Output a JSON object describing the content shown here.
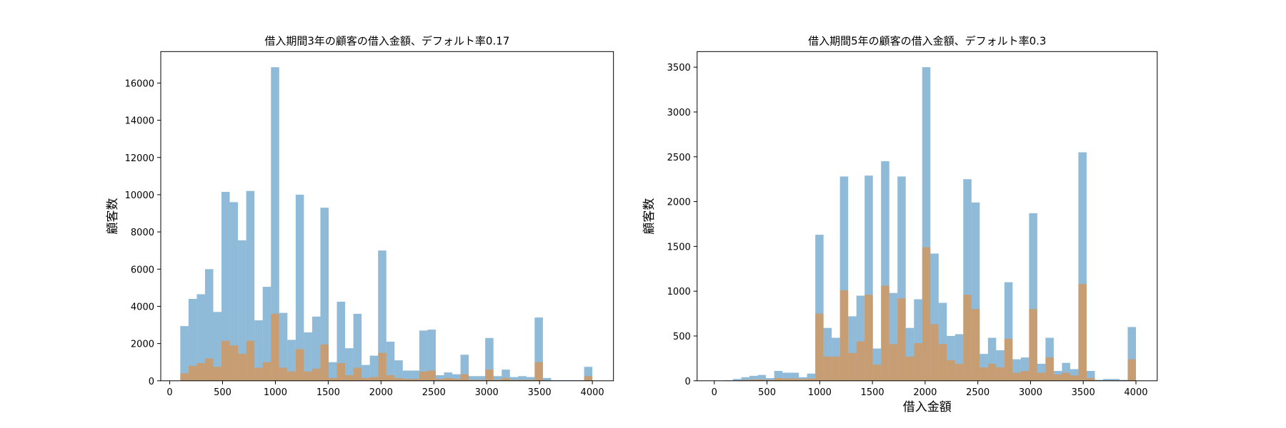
{
  "chart_data": [
    {
      "type": "histogram",
      "title": "借入期間3年の顧客の借入金額、デフォルト率0.17",
      "y_label": "顧客数",
      "bins": [
        100,
        178,
        256,
        334,
        412,
        490,
        568,
        646,
        724,
        802,
        880,
        958,
        1036,
        1114,
        1192,
        1270,
        1348,
        1426,
        1504,
        1582,
        1660,
        1738,
        1816,
        1894,
        1972,
        2050,
        2128,
        2206,
        2284,
        2362,
        2440,
        2518,
        2596,
        2674,
        2752,
        2830,
        2908,
        2986,
        3064,
        3142,
        3220,
        3298,
        3376,
        3454,
        3532,
        3610,
        3688,
        3766,
        3844,
        3922,
        4000
      ],
      "series": [
        {
          "color": "#1f77b4",
          "values": [
            2940,
            4400,
            4650,
            6000,
            3700,
            10150,
            9600,
            7550,
            10200,
            3250,
            5050,
            16850,
            3650,
            2200,
            10000,
            2600,
            3450,
            9300,
            1000,
            4250,
            1750,
            3600,
            850,
            1350,
            7000,
            2100,
            1100,
            550,
            550,
            2700,
            2750,
            300,
            450,
            350,
            1400,
            250,
            250,
            2300,
            250,
            600,
            200,
            250,
            200,
            3400,
            150,
            30,
            30,
            30,
            30,
            750
          ]
        },
        {
          "color": "#ff7f0e",
          "values": [
            400,
            800,
            950,
            1200,
            750,
            2150,
            1900,
            1450,
            2150,
            700,
            1000,
            3600,
            700,
            500,
            1700,
            500,
            650,
            1950,
            150,
            950,
            300,
            700,
            150,
            200,
            1500,
            300,
            150,
            100,
            100,
            500,
            550,
            100,
            150,
            100,
            350,
            50,
            50,
            600,
            50,
            150,
            50,
            50,
            50,
            1000,
            20,
            0,
            0,
            0,
            0,
            250
          ]
        }
      ],
      "xlim": [
        -85,
        4200
      ],
      "xticks": [
        0,
        500,
        1000,
        1500,
        2000,
        2500,
        3000,
        3500,
        4000
      ],
      "ylim": [
        0,
        17690
      ],
      "yticks": [
        0,
        2000,
        4000,
        6000,
        8000,
        10000,
        12000,
        14000,
        16000
      ]
    },
    {
      "type": "histogram",
      "title": "借入期間5年の顧客の借入金額、デフォルト率0.3",
      "y_label": "顧客数",
      "x_label": "借入金額",
      "bins": [
        100,
        178,
        256,
        334,
        412,
        490,
        568,
        646,
        724,
        802,
        880,
        958,
        1036,
        1114,
        1192,
        1270,
        1348,
        1426,
        1504,
        1582,
        1660,
        1738,
        1816,
        1894,
        1972,
        2050,
        2128,
        2206,
        2284,
        2362,
        2440,
        2518,
        2596,
        2674,
        2752,
        2830,
        2908,
        2986,
        3064,
        3142,
        3220,
        3298,
        3376,
        3454,
        3532,
        3610,
        3688,
        3766,
        3844,
        3922,
        4000
      ],
      "series": [
        {
          "color": "#1f77b4",
          "values": [
            5,
            20,
            40,
            55,
            65,
            30,
            110,
            90,
            90,
            40,
            80,
            1630,
            590,
            480,
            2280,
            720,
            950,
            2290,
            360,
            2450,
            980,
            2280,
            590,
            910,
            3500,
            1420,
            870,
            500,
            520,
            2250,
            1990,
            300,
            480,
            340,
            1100,
            240,
            260,
            1870,
            190,
            480,
            110,
            200,
            130,
            2550,
            110,
            10,
            20,
            20,
            10,
            600
          ]
        },
        {
          "color": "#ff7f0e",
          "values": [
            0,
            5,
            10,
            15,
            15,
            10,
            30,
            25,
            25,
            20,
            25,
            750,
            270,
            270,
            1010,
            310,
            440,
            960,
            180,
            1060,
            410,
            920,
            270,
            420,
            1490,
            630,
            410,
            230,
            190,
            960,
            800,
            150,
            190,
            150,
            470,
            90,
            110,
            800,
            90,
            260,
            70,
            90,
            60,
            1080,
            30,
            5,
            5,
            5,
            5,
            240
          ]
        }
      ],
      "xlim": [
        -163,
        4202
      ],
      "xticks": [
        0,
        500,
        1000,
        1500,
        2000,
        2500,
        3000,
        3500,
        4000
      ],
      "ylim": [
        0,
        3674
      ],
      "yticks": [
        0,
        500,
        1000,
        1500,
        2000,
        2500,
        3000,
        3500
      ]
    }
  ]
}
